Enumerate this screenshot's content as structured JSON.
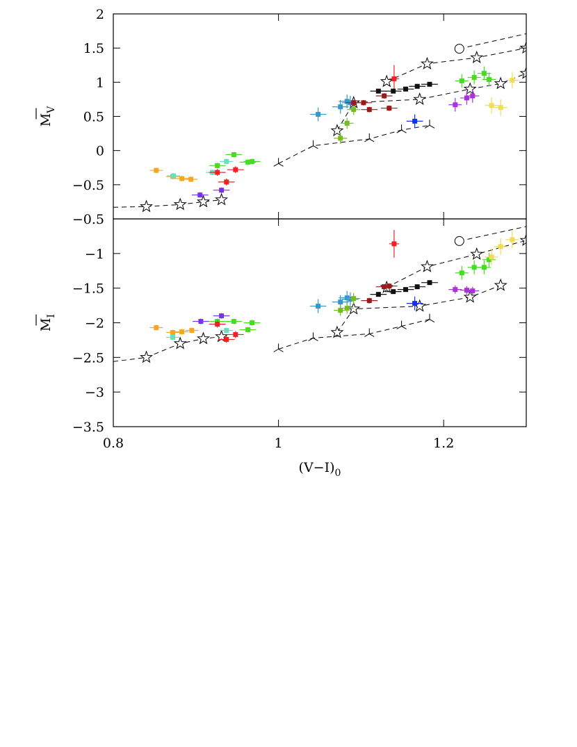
{
  "chart_data": [
    {
      "type": "scatter",
      "ylabel": "M",
      "ylabel_sub": "V",
      "xlim": [
        0.8,
        1.3
      ],
      "ylim": [
        -1,
        2
      ],
      "xticks": [
        0.8,
        1,
        1.2
      ],
      "yticks": [
        {
          "value": -0.5,
          "label": "−0.5"
        },
        0,
        0.5,
        1,
        1.5,
        2
      ],
      "series": [
        {
          "color": "#f5a623",
          "xerr": 0.008,
          "yerr": 0.04,
          "x": [
            0.852,
            0.872,
            0.883,
            0.894
          ],
          "values": [
            -0.29,
            -0.38,
            -0.41,
            -0.42
          ]
        },
        {
          "color": "#66e0c0",
          "xerr": 0.008,
          "yerr": 0.04,
          "x": [
            0.873,
            0.92,
            0.937
          ],
          "values": [
            -0.37,
            -0.32,
            -0.16
          ]
        },
        {
          "color": "#44dd22",
          "xerr": 0.01,
          "yerr": 0.04,
          "x": [
            0.926,
            0.946,
            0.963,
            0.968
          ],
          "values": [
            -0.22,
            -0.06,
            -0.17,
            -0.16
          ]
        },
        {
          "color": "#ee2222",
          "xerr": 0.01,
          "yerr": 0.05,
          "x": [
            0.926,
            0.937,
            0.948
          ],
          "values": [
            -0.32,
            -0.46,
            -0.28
          ]
        },
        {
          "color": "#7733ee",
          "xerr": 0.01,
          "yerr": 0.04,
          "x": [
            0.905,
            0.931
          ],
          "values": [
            -0.65,
            -0.58
          ]
        },
        {
          "color": "#3399cc",
          "xerr": 0.01,
          "yerr": 0.1,
          "x": [
            1.048,
            1.075,
            1.083,
            1.087
          ],
          "values": [
            0.53,
            0.64,
            0.72,
            0.7
          ]
        },
        {
          "color": "#77bb22",
          "xerr": 0.008,
          "yerr": 0.08,
          "x": [
            1.075,
            1.083,
            1.091
          ],
          "values": [
            0.18,
            0.4,
            0.6
          ]
        },
        {
          "color": "#991a1a",
          "xerr": 0.01,
          "yerr": 0.04,
          "x": [
            1.091,
            1.103,
            1.11,
            1.128,
            1.134
          ],
          "values": [
            0.7,
            0.7,
            0.6,
            0.8,
            0.62
          ]
        },
        {
          "color": "#ee2222",
          "xerr": 0.006,
          "yerr": 0.2,
          "x": [
            1.14
          ],
          "values": [
            1.05
          ]
        },
        {
          "color": "#111111",
          "xerr": 0.01,
          "yerr": 0.03,
          "x": [
            1.121,
            1.139,
            1.154,
            1.168,
            1.183
          ],
          "values": [
            0.87,
            0.87,
            0.9,
            0.94,
            0.97
          ]
        },
        {
          "color": "#1133ee",
          "xerr": 0.01,
          "yerr": 0.1,
          "x": [
            1.165
          ],
          "values": [
            0.43
          ]
        },
        {
          "color": "#aa33dd",
          "xerr": 0.008,
          "yerr": 0.1,
          "x": [
            1.214,
            1.228,
            1.235
          ],
          "values": [
            0.67,
            0.77,
            0.8
          ]
        },
        {
          "color": "#44dd22",
          "xerr": 0.008,
          "yerr": 0.1,
          "x": [
            1.222,
            1.237,
            1.249,
            1.255
          ],
          "values": [
            1.02,
            1.07,
            1.13,
            1.04
          ]
        },
        {
          "color": "#eedd55",
          "xerr": 0.008,
          "yerr": 0.12,
          "x": [
            1.258,
            1.269,
            1.283
          ],
          "values": [
            0.66,
            0.63,
            1.03
          ]
        }
      ],
      "lines": [
        {
          "marker": "none",
          "x": [
            0.8,
            0.84
          ],
          "values": [
            -0.83,
            -0.82
          ]
        },
        {
          "marker": "star",
          "x": [
            0.84,
            0.881,
            0.909,
            0.931
          ],
          "values": [
            -0.82,
            -0.79,
            -0.75,
            -0.72
          ]
        },
        {
          "marker": "tri",
          "x": [
            1.0,
            1.042,
            1.11,
            1.149,
            1.183
          ],
          "values": [
            -0.19,
            0.07,
            0.17,
            0.3,
            0.37
          ]
        },
        {
          "marker": "star",
          "x": [
            1.071,
            1.091,
            1.171,
            1.232,
            1.269,
            1.3
          ],
          "values": [
            0.29,
            0.7,
            0.75,
            0.9,
            0.98,
            1.13
          ]
        },
        {
          "marker": "star",
          "x": [
            1.131,
            1.18,
            1.24,
            1.3
          ],
          "values": [
            1.01,
            1.27,
            1.36,
            1.5
          ]
        },
        {
          "marker": "none",
          "x": [
            1.219,
            1.3
          ],
          "values": [
            1.49,
            1.71
          ]
        },
        {
          "marker": "circle",
          "x": [
            1.219
          ],
          "values": [
            1.49
          ]
        }
      ]
    },
    {
      "type": "scatter",
      "ylabel": "M",
      "ylabel_sub": "I",
      "xlabel": "(V−I)",
      "xlabel_sub": "0",
      "xlim": [
        0.8,
        1.3
      ],
      "ylim": [
        -3.5,
        -0.5
      ],
      "xticks": [
        0.8,
        1,
        1.2
      ],
      "yticks": [
        {
          "value": -3.5,
          "label": "−3.5"
        },
        {
          "value": -3,
          "label": "−3"
        },
        {
          "value": -2.5,
          "label": "−2.5"
        },
        {
          "value": -2,
          "label": "−2"
        },
        {
          "value": -1.5,
          "label": "−1.5"
        },
        {
          "value": -1,
          "label": "−1"
        },
        {
          "value": -0.5,
          "label": "−0.5"
        }
      ],
      "series": [
        {
          "color": "#f5a623",
          "xerr": 0.008,
          "yerr": 0.04,
          "x": [
            0.852,
            0.872,
            0.883,
            0.895
          ],
          "values": [
            -2.07,
            -2.14,
            -2.13,
            -2.11
          ]
        },
        {
          "color": "#66e0c0",
          "xerr": 0.008,
          "yerr": 0.04,
          "x": [
            0.872,
            0.937
          ],
          "values": [
            -2.21,
            -2.11
          ]
        },
        {
          "color": "#7733ee",
          "xerr": 0.01,
          "yerr": 0.04,
          "x": [
            0.906,
            0.931
          ],
          "values": [
            -1.98,
            -1.9
          ]
        },
        {
          "color": "#44dd22",
          "xerr": 0.01,
          "yerr": 0.04,
          "x": [
            0.926,
            0.946,
            0.963,
            0.968
          ],
          "values": [
            -1.98,
            -1.98,
            -2.1,
            -2.0
          ]
        },
        {
          "color": "#ee2222",
          "xerr": 0.01,
          "yerr": 0.05,
          "x": [
            0.926,
            0.937,
            0.948
          ],
          "values": [
            -2.02,
            -2.24,
            -2.17
          ]
        },
        {
          "color": "#3399cc",
          "xerr": 0.01,
          "yerr": 0.1,
          "x": [
            1.048,
            1.075,
            1.083,
            1.087
          ],
          "values": [
            -1.76,
            -1.7,
            -1.64,
            -1.66
          ]
        },
        {
          "color": "#77bb22",
          "xerr": 0.008,
          "yerr": 0.08,
          "x": [
            1.075,
            1.083,
            1.091
          ],
          "values": [
            -1.82,
            -1.79,
            -1.65
          ]
        },
        {
          "color": "#991a1a",
          "xerr": 0.01,
          "yerr": 0.04,
          "x": [
            1.11,
            1.128,
            1.134
          ],
          "values": [
            -1.68,
            -1.48,
            -1.47
          ]
        },
        {
          "color": "#ee2222",
          "xerr": 0.006,
          "yerr": 0.2,
          "x": [
            1.14
          ],
          "values": [
            -0.86
          ]
        },
        {
          "color": "#111111",
          "xerr": 0.01,
          "yerr": 0.03,
          "x": [
            1.121,
            1.139,
            1.154,
            1.168,
            1.183
          ],
          "values": [
            -1.59,
            -1.55,
            -1.52,
            -1.48,
            -1.42
          ]
        },
        {
          "color": "#1133ee",
          "xerr": 0.01,
          "yerr": 0.1,
          "x": [
            1.165
          ],
          "values": [
            -1.72
          ]
        },
        {
          "color": "#aa33dd",
          "xerr": 0.008,
          "yerr": 0.06,
          "x": [
            1.214,
            1.228,
            1.235
          ],
          "values": [
            -1.52,
            -1.53,
            -1.54
          ]
        },
        {
          "color": "#44dd22",
          "xerr": 0.008,
          "yerr": 0.1,
          "x": [
            1.222,
            1.237,
            1.249,
            1.255
          ],
          "values": [
            -1.28,
            -1.2,
            -1.2,
            -1.09
          ]
        },
        {
          "color": "#eedd55",
          "xerr": 0.008,
          "yerr": 0.12,
          "x": [
            1.258,
            1.269,
            1.283
          ],
          "values": [
            -1.05,
            -0.9,
            -0.8
          ]
        }
      ],
      "lines": [
        {
          "marker": "none",
          "x": [
            0.8,
            0.84
          ],
          "values": [
            -2.56,
            -2.5
          ]
        },
        {
          "marker": "star",
          "x": [
            0.84,
            0.881,
            0.909,
            0.931
          ],
          "values": [
            -2.5,
            -2.3,
            -2.23,
            -2.2
          ]
        },
        {
          "marker": "tri",
          "x": [
            1.0,
            1.042,
            1.11,
            1.149,
            1.183
          ],
          "values": [
            -2.38,
            -2.22,
            -2.16,
            -2.05,
            -1.95
          ]
        },
        {
          "marker": "star",
          "x": [
            1.071,
            1.091,
            1.171,
            1.232,
            1.269
          ],
          "values": [
            -2.14,
            -1.8,
            -1.76,
            -1.63,
            -1.46
          ]
        },
        {
          "marker": "star",
          "x": [
            1.131,
            1.18,
            1.24,
            1.3
          ],
          "values": [
            -1.49,
            -1.19,
            -1.01,
            -0.81
          ]
        },
        {
          "marker": "none",
          "x": [
            1.219,
            1.3
          ],
          "values": [
            -0.82,
            -0.61
          ]
        },
        {
          "marker": "circle",
          "x": [
            1.219
          ],
          "values": [
            -0.82
          ]
        }
      ]
    }
  ]
}
